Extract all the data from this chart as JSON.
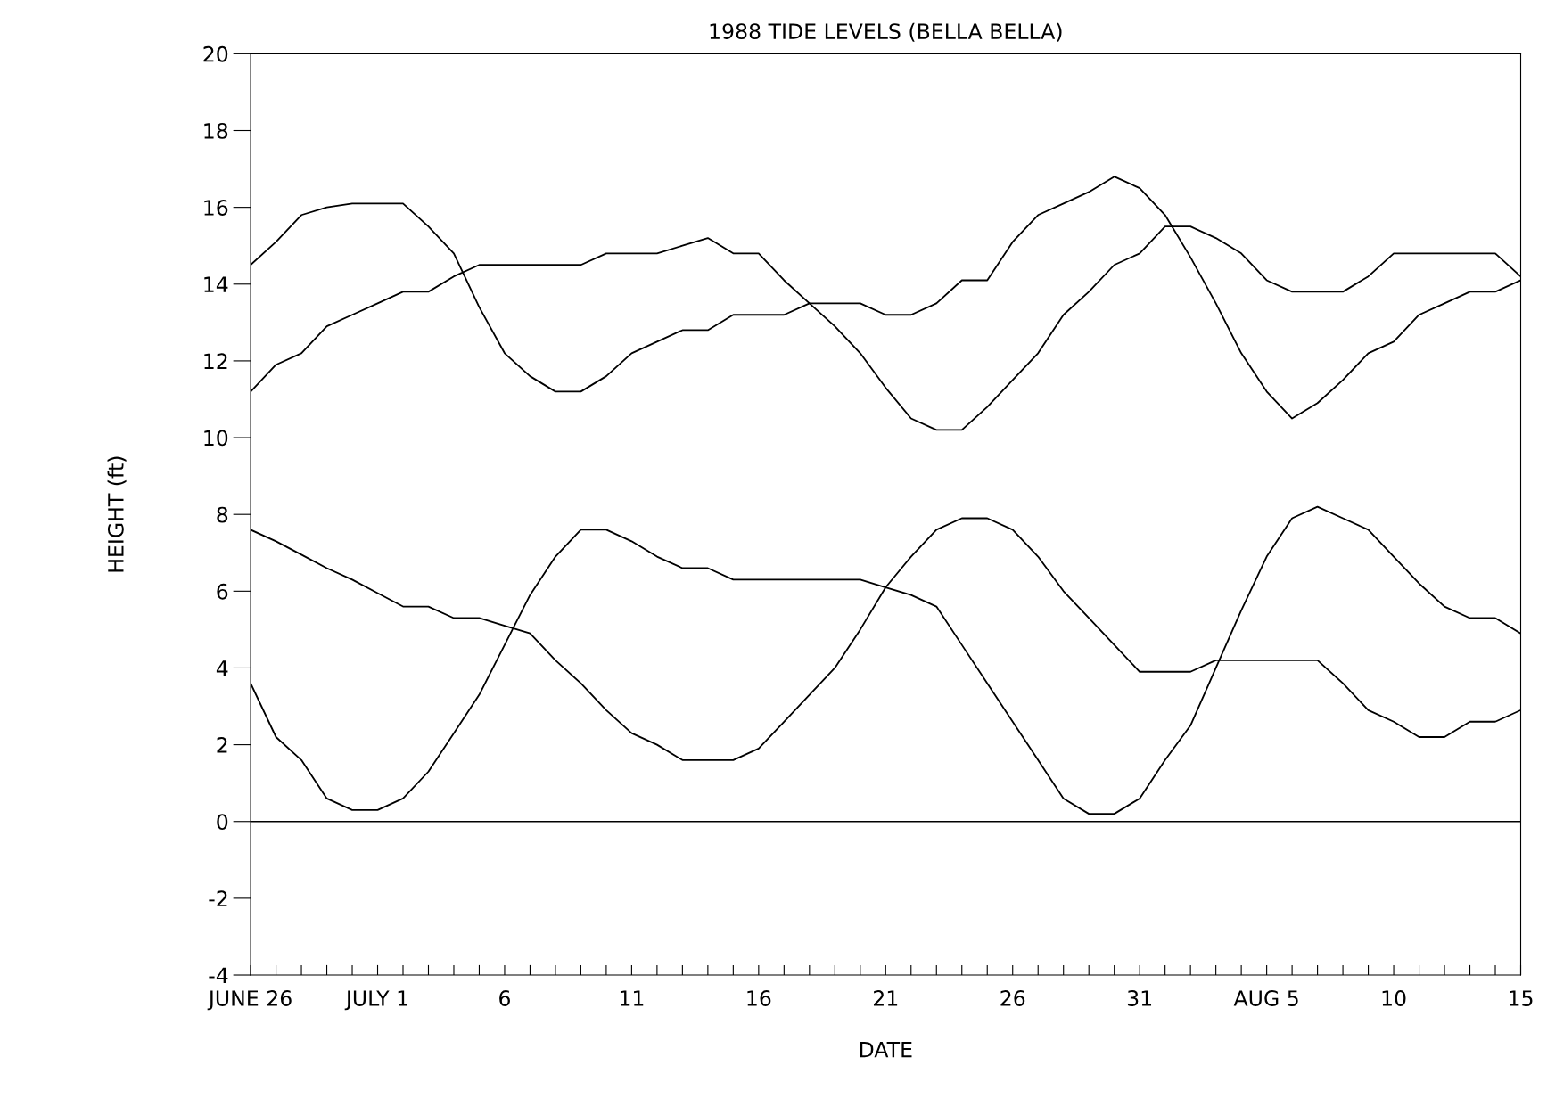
{
  "chart_data": {
    "type": "line",
    "title": "1988 TIDE LEVELS (BELLA BELLA)",
    "xlabel": "DATE",
    "ylabel": "HEIGHT (ft)",
    "x": [
      "1988-06-26",
      "1988-06-27",
      "1988-06-28",
      "1988-06-29",
      "1988-06-30",
      "1988-07-01",
      "1988-07-02",
      "1988-07-03",
      "1988-07-04",
      "1988-07-05",
      "1988-07-06",
      "1988-07-07",
      "1988-07-08",
      "1988-07-09",
      "1988-07-10",
      "1988-07-11",
      "1988-07-12",
      "1988-07-13",
      "1988-07-14",
      "1988-07-15",
      "1988-07-16",
      "1988-07-17",
      "1988-07-18",
      "1988-07-19",
      "1988-07-20",
      "1988-07-21",
      "1988-07-22",
      "1988-07-23",
      "1988-07-24",
      "1988-07-25",
      "1988-07-26",
      "1988-07-27",
      "1988-07-28",
      "1988-07-29",
      "1988-07-30",
      "1988-07-31",
      "1988-08-01",
      "1988-08-02",
      "1988-08-03",
      "1988-08-04",
      "1988-08-05",
      "1988-08-06",
      "1988-08-07",
      "1988-08-08",
      "1988-08-09",
      "1988-08-10",
      "1988-08-11",
      "1988-08-12",
      "1988-08-13",
      "1988-08-14",
      "1988-08-15"
    ],
    "series": [
      {
        "color": "#000000",
        "values": [
          14.5,
          15.1,
          15.8,
          16.0,
          16.1,
          16.1,
          16.1,
          15.5,
          14.8,
          13.4,
          12.2,
          11.6,
          11.2,
          11.2,
          11.6,
          12.2,
          12.5,
          12.8,
          12.8,
          13.2,
          13.2,
          13.2,
          13.5,
          13.5,
          13.5,
          13.2,
          13.2,
          13.5,
          14.1,
          14.1,
          15.1,
          15.8,
          16.1,
          16.4,
          16.8,
          16.5,
          15.8,
          14.7,
          13.5,
          12.2,
          11.2,
          10.5,
          10.9,
          11.5,
          12.2,
          12.5,
          13.2,
          13.5,
          13.8,
          13.8,
          14.1
        ]
      },
      {
        "color": "#000000",
        "values": [
          11.2,
          11.9,
          12.2,
          12.9,
          13.2,
          13.5,
          13.8,
          13.8,
          14.2,
          14.5,
          14.5,
          14.5,
          14.5,
          14.5,
          14.8,
          14.8,
          14.8,
          15.0,
          15.2,
          14.8,
          14.8,
          14.1,
          13.5,
          12.9,
          12.2,
          11.3,
          10.5,
          10.2,
          10.2,
          10.8,
          11.5,
          12.2,
          13.2,
          13.8,
          14.5,
          14.8,
          15.5,
          15.5,
          15.2,
          14.8,
          14.1,
          13.8,
          13.8,
          13.8,
          14.2,
          14.8,
          14.8,
          14.8,
          14.8,
          14.8,
          14.2
        ]
      },
      {
        "color": "#000000",
        "values": [
          7.6,
          7.3,
          6.95,
          6.6,
          6.3,
          5.95,
          5.6,
          5.6,
          5.3,
          5.3,
          5.1,
          4.9,
          4.2,
          3.6,
          2.9,
          2.3,
          2.0,
          1.6,
          1.6,
          1.6,
          1.9,
          2.6,
          3.3,
          4.0,
          5.0,
          6.1,
          6.9,
          7.6,
          7.9,
          7.9,
          7.6,
          6.9,
          6.0,
          5.3,
          4.6,
          3.9,
          3.9,
          3.9,
          4.2,
          4.2,
          4.2,
          4.2,
          4.2,
          3.6,
          2.9,
          2.6,
          2.2,
          2.2,
          2.6,
          2.6,
          2.9
        ]
      },
      {
        "color": "#000000",
        "values": [
          3.6,
          2.2,
          1.6,
          0.6,
          0.3,
          0.3,
          0.6,
          1.3,
          2.3,
          3.3,
          4.6,
          5.9,
          6.9,
          7.6,
          7.6,
          7.3,
          6.9,
          6.6,
          6.6,
          6.3,
          6.3,
          6.3,
          6.3,
          6.3,
          6.3,
          6.1,
          5.9,
          5.6,
          4.6,
          3.6,
          2.6,
          1.6,
          0.6,
          0.2,
          0.2,
          0.6,
          1.6,
          2.5,
          4.0,
          5.5,
          6.9,
          7.9,
          8.2,
          7.9,
          7.6,
          6.9,
          6.2,
          5.6,
          5.3,
          5.3,
          4.9
        ]
      }
    ],
    "ylim": [
      -4,
      20
    ],
    "yticks": [
      -4,
      -2,
      0,
      2,
      4,
      6,
      8,
      10,
      12,
      14,
      16,
      18,
      20
    ],
    "xlim": [
      "1988-06-26",
      "1988-08-15"
    ],
    "xticks": [
      {
        "value": "1988-06-26",
        "label": "JUNE 26"
      },
      {
        "value": "1988-06-27",
        "label": null
      },
      {
        "value": "1988-06-28",
        "label": null
      },
      {
        "value": "1988-06-29",
        "label": null
      },
      {
        "value": "1988-06-30",
        "label": null
      },
      {
        "value": "1988-07-01",
        "label": "JULY 1"
      },
      {
        "value": "1988-07-02",
        "label": null
      },
      {
        "value": "1988-07-03",
        "label": null
      },
      {
        "value": "1988-07-04",
        "label": null
      },
      {
        "value": "1988-07-05",
        "label": null
      },
      {
        "value": "1988-07-06",
        "label": "6"
      },
      {
        "value": "1988-07-07",
        "label": null
      },
      {
        "value": "1988-07-08",
        "label": null
      },
      {
        "value": "1988-07-09",
        "label": null
      },
      {
        "value": "1988-07-10",
        "label": null
      },
      {
        "value": "1988-07-11",
        "label": "11"
      },
      {
        "value": "1988-07-12",
        "label": null
      },
      {
        "value": "1988-07-13",
        "label": null
      },
      {
        "value": "1988-07-14",
        "label": null
      },
      {
        "value": "1988-07-15",
        "label": null
      },
      {
        "value": "1988-07-16",
        "label": "16"
      },
      {
        "value": "1988-07-17",
        "label": null
      },
      {
        "value": "1988-07-18",
        "label": null
      },
      {
        "value": "1988-07-19",
        "label": null
      },
      {
        "value": "1988-07-20",
        "label": null
      },
      {
        "value": "1988-07-21",
        "label": "21"
      },
      {
        "value": "1988-07-22",
        "label": null
      },
      {
        "value": "1988-07-23",
        "label": null
      },
      {
        "value": "1988-07-24",
        "label": null
      },
      {
        "value": "1988-07-25",
        "label": null
      },
      {
        "value": "1988-07-26",
        "label": "26"
      },
      {
        "value": "1988-07-27",
        "label": null
      },
      {
        "value": "1988-07-28",
        "label": null
      },
      {
        "value": "1988-07-29",
        "label": null
      },
      {
        "value": "1988-07-30",
        "label": null
      },
      {
        "value": "1988-07-31",
        "label": "31"
      },
      {
        "value": "1988-08-01",
        "label": null
      },
      {
        "value": "1988-08-02",
        "label": null
      },
      {
        "value": "1988-08-03",
        "label": null
      },
      {
        "value": "1988-08-04",
        "label": null
      },
      {
        "value": "1988-08-05",
        "label": "AUG 5"
      },
      {
        "value": "1988-08-06",
        "label": null
      },
      {
        "value": "1988-08-07",
        "label": null
      },
      {
        "value": "1988-08-08",
        "label": null
      },
      {
        "value": "1988-08-09",
        "label": null
      },
      {
        "value": "1988-08-10",
        "label": "10"
      },
      {
        "value": "1988-08-11",
        "label": null
      },
      {
        "value": "1988-08-12",
        "label": null
      },
      {
        "value": "1988-08-13",
        "label": null
      },
      {
        "value": "1988-08-14",
        "label": null
      },
      {
        "value": "1988-08-15",
        "label": "15"
      }
    ],
    "ref_lines": [
      {
        "axis": "y",
        "value": 0,
        "color": "#000000",
        "line_style": "solid"
      }
    ],
    "marker": "none",
    "line_style": "solid"
  }
}
